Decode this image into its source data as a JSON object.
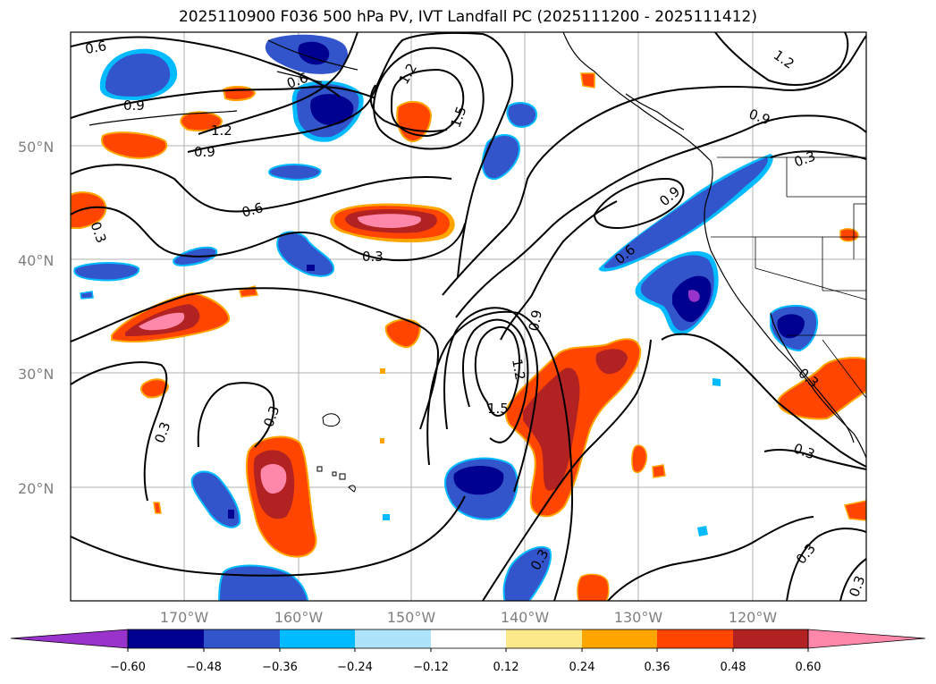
{
  "title": "2025110900 F036 500 hPa PV, IVT Landfall PC (2025111200 - 2025111412)",
  "lat_labels": [
    "50°N",
    "40°N",
    "30°N",
    "20°N"
  ],
  "lon_labels": [
    "170°W",
    "160°W",
    "150°W",
    "140°W",
    "130°W",
    "120°W"
  ],
  "contour_labels": [
    "0.6",
    "0.9",
    "0.6",
    "1.2",
    "1.2",
    "1.5",
    "0.9",
    "1.2",
    "0.9",
    "0.9",
    "0.3",
    "0.6",
    "0.3",
    "0.3",
    "0.9",
    "0.6",
    "0.9",
    "1.2",
    "1.5",
    "0.3",
    "0.3",
    "0.3",
    "0.3",
    "0.3",
    "0.3",
    "0.3"
  ],
  "colorbar": {
    "colors": [
      "#9933cc",
      "#000090",
      "#3355cc",
      "#00bbff",
      "#aee4fb",
      "#ffffff",
      "#fce98a",
      "#ffa500",
      "#ff4500",
      "#b22222",
      "#ff88aa",
      "#ff88aa"
    ],
    "ticks": [
      "−0.60",
      "−0.48",
      "−0.36",
      "−0.24",
      "−0.12",
      "0.12",
      "0.24",
      "0.36",
      "0.48",
      "0.60"
    ]
  },
  "legend_colors": {
    "pink": "#ff88aa",
    "darkred": "#b22222",
    "orangered": "#ff4500",
    "orange": "#ffa500",
    "yellow": "#fce98a",
    "navy": "#000090",
    "blue": "#3355cc",
    "cyan": "#00bbff",
    "lightblue": "#aee4fb",
    "purple": "#9933cc"
  }
}
